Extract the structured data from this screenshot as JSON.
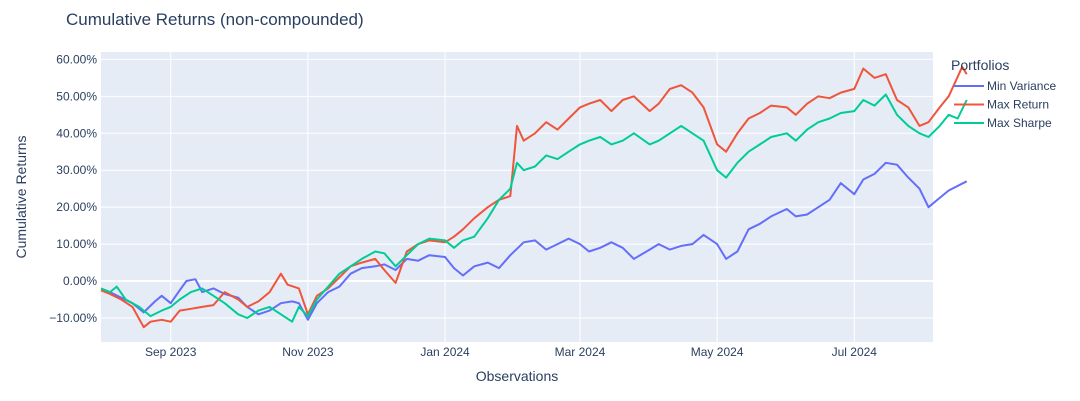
{
  "chart_data": {
    "type": "line",
    "title": "Cumulative Returns (non-compounded)",
    "xlabel": "Observations",
    "ylabel": "Cumulative Returns",
    "x_start": "2023-08-01",
    "x_end": "2024-08-05",
    "ylim": [
      -16.5,
      62
    ],
    "yticks": [
      -10,
      0,
      10,
      20,
      30,
      40,
      50,
      60
    ],
    "ytick_labels": [
      "−10.00%",
      "0.00%",
      "10.00%",
      "20.00%",
      "30.00%",
      "40.00%",
      "50.00%",
      "60.00%"
    ],
    "xticks": [
      {
        "date": "2023-09-01",
        "label": "Sep 2023"
      },
      {
        "date": "2023-11-01",
        "label": "Nov 2023"
      },
      {
        "date": "2024-01-01",
        "label": "Jan 2024"
      },
      {
        "date": "2024-03-01",
        "label": "Mar 2024"
      },
      {
        "date": "2024-05-01",
        "label": "May 2024"
      },
      {
        "date": "2024-07-01",
        "label": "Jul 2024"
      }
    ],
    "legend_title": "Portfolios",
    "legend_position": "right",
    "series": [
      {
        "name": "Min Variance",
        "color": "#636efa",
        "points": [
          [
            "2023-08-01",
            -2.5
          ],
          [
            "2023-08-05",
            -3
          ],
          [
            "2023-08-10",
            -4.5
          ],
          [
            "2023-08-15",
            -6
          ],
          [
            "2023-08-20",
            -8.5
          ],
          [
            "2023-08-25",
            -5.5
          ],
          [
            "2023-08-28",
            -4
          ],
          [
            "2023-09-01",
            -6
          ],
          [
            "2023-09-05",
            -2.5
          ],
          [
            "2023-09-08",
            0
          ],
          [
            "2023-09-12",
            0.5
          ],
          [
            "2023-09-15",
            -3
          ],
          [
            "2023-09-20",
            -2
          ],
          [
            "2023-09-25",
            -3.5
          ],
          [
            "2023-10-01",
            -4.5
          ],
          [
            "2023-10-05",
            -7
          ],
          [
            "2023-10-10",
            -9
          ],
          [
            "2023-10-15",
            -8
          ],
          [
            "2023-10-20",
            -6
          ],
          [
            "2023-10-25",
            -5.5
          ],
          [
            "2023-10-28",
            -6
          ],
          [
            "2023-11-01",
            -10.5
          ],
          [
            "2023-11-05",
            -6
          ],
          [
            "2023-11-10",
            -3
          ],
          [
            "2023-11-15",
            -1.5
          ],
          [
            "2023-11-20",
            2
          ],
          [
            "2023-11-25",
            3.5
          ],
          [
            "2023-12-01",
            4
          ],
          [
            "2023-12-05",
            4.5
          ],
          [
            "2023-12-10",
            3
          ],
          [
            "2023-12-15",
            6
          ],
          [
            "2023-12-20",
            5.5
          ],
          [
            "2023-12-25",
            7
          ],
          [
            "2024-01-01",
            6.5
          ],
          [
            "2024-01-05",
            3.5
          ],
          [
            "2024-01-09",
            1.5
          ],
          [
            "2024-01-14",
            4
          ],
          [
            "2024-01-20",
            5
          ],
          [
            "2024-01-25",
            3.5
          ],
          [
            "2024-01-30",
            7
          ],
          [
            "2024-02-05",
            10.5
          ],
          [
            "2024-02-10",
            11
          ],
          [
            "2024-02-15",
            8.5
          ],
          [
            "2024-02-20",
            10
          ],
          [
            "2024-02-25",
            11.5
          ],
          [
            "2024-03-01",
            10
          ],
          [
            "2024-03-05",
            8
          ],
          [
            "2024-03-10",
            9
          ],
          [
            "2024-03-15",
            10.5
          ],
          [
            "2024-03-20",
            9
          ],
          [
            "2024-03-25",
            6
          ],
          [
            "2024-04-01",
            8.5
          ],
          [
            "2024-04-05",
            10
          ],
          [
            "2024-04-10",
            8.5
          ],
          [
            "2024-04-15",
            9.5
          ],
          [
            "2024-04-20",
            10
          ],
          [
            "2024-04-25",
            12.5
          ],
          [
            "2024-05-01",
            10
          ],
          [
            "2024-05-05",
            6
          ],
          [
            "2024-05-10",
            8
          ],
          [
            "2024-05-15",
            14
          ],
          [
            "2024-05-20",
            15.5
          ],
          [
            "2024-05-25",
            17.5
          ],
          [
            "2024-06-01",
            19.5
          ],
          [
            "2024-06-05",
            17.5
          ],
          [
            "2024-06-10",
            18
          ],
          [
            "2024-06-15",
            20
          ],
          [
            "2024-06-20",
            22
          ],
          [
            "2024-06-25",
            26.5
          ],
          [
            "2024-07-01",
            23.5
          ],
          [
            "2024-07-05",
            27.5
          ],
          [
            "2024-07-10",
            29
          ],
          [
            "2024-07-15",
            32
          ],
          [
            "2024-07-20",
            31.5
          ],
          [
            "2024-07-25",
            28
          ],
          [
            "2024-07-30",
            25
          ],
          [
            "2024-08-03",
            20
          ],
          [
            "2024-08-08",
            22.5
          ],
          [
            "2024-08-12",
            24.5
          ],
          [
            "2024-08-20",
            27
          ]
        ]
      },
      {
        "name": "Max Return",
        "color": "#ef553b",
        "points": [
          [
            "2023-08-01",
            -2.5
          ],
          [
            "2023-08-05",
            -3.5
          ],
          [
            "2023-08-10",
            -5
          ],
          [
            "2023-08-15",
            -7
          ],
          [
            "2023-08-20",
            -12.5
          ],
          [
            "2023-08-23",
            -11
          ],
          [
            "2023-08-28",
            -10.5
          ],
          [
            "2023-09-01",
            -11
          ],
          [
            "2023-09-05",
            -8
          ],
          [
            "2023-09-10",
            -7.5
          ],
          [
            "2023-09-15",
            -7
          ],
          [
            "2023-09-20",
            -6.5
          ],
          [
            "2023-09-25",
            -3
          ],
          [
            "2023-10-01",
            -5
          ],
          [
            "2023-10-05",
            -7
          ],
          [
            "2023-10-10",
            -5.5
          ],
          [
            "2023-10-15",
            -3
          ],
          [
            "2023-10-20",
            2
          ],
          [
            "2023-10-23",
            -1
          ],
          [
            "2023-10-28",
            -2
          ],
          [
            "2023-11-01",
            -9
          ],
          [
            "2023-11-05",
            -4
          ],
          [
            "2023-11-10",
            -2
          ],
          [
            "2023-11-15",
            1
          ],
          [
            "2023-11-20",
            4
          ],
          [
            "2023-11-25",
            5
          ],
          [
            "2023-12-01",
            6
          ],
          [
            "2023-12-05",
            3
          ],
          [
            "2023-12-10",
            -0.5
          ],
          [
            "2023-12-15",
            8
          ],
          [
            "2023-12-20",
            10
          ],
          [
            "2023-12-25",
            11
          ],
          [
            "2024-01-01",
            10.5
          ],
          [
            "2024-01-05",
            12
          ],
          [
            "2024-01-09",
            14
          ],
          [
            "2024-01-14",
            17
          ],
          [
            "2024-01-20",
            20
          ],
          [
            "2024-01-25",
            22
          ],
          [
            "2024-01-30",
            23
          ],
          [
            "2024-02-02",
            42
          ],
          [
            "2024-02-05",
            38
          ],
          [
            "2024-02-10",
            40
          ],
          [
            "2024-02-15",
            43
          ],
          [
            "2024-02-20",
            41
          ],
          [
            "2024-02-25",
            44
          ],
          [
            "2024-03-01",
            47
          ],
          [
            "2024-03-05",
            48
          ],
          [
            "2024-03-10",
            49
          ],
          [
            "2024-03-15",
            46
          ],
          [
            "2024-03-20",
            49
          ],
          [
            "2024-03-25",
            50
          ],
          [
            "2024-04-01",
            46
          ],
          [
            "2024-04-05",
            48
          ],
          [
            "2024-04-10",
            52
          ],
          [
            "2024-04-15",
            53
          ],
          [
            "2024-04-20",
            51
          ],
          [
            "2024-04-25",
            47
          ],
          [
            "2024-05-01",
            37
          ],
          [
            "2024-05-05",
            35
          ],
          [
            "2024-05-10",
            40
          ],
          [
            "2024-05-15",
            44
          ],
          [
            "2024-05-20",
            45.5
          ],
          [
            "2024-05-25",
            47.5
          ],
          [
            "2024-06-01",
            47
          ],
          [
            "2024-06-05",
            45
          ],
          [
            "2024-06-10",
            48
          ],
          [
            "2024-06-15",
            50
          ],
          [
            "2024-06-20",
            49.5
          ],
          [
            "2024-06-25",
            51
          ],
          [
            "2024-07-01",
            52
          ],
          [
            "2024-07-05",
            57.5
          ],
          [
            "2024-07-10",
            55
          ],
          [
            "2024-07-15",
            56
          ],
          [
            "2024-07-20",
            49
          ],
          [
            "2024-07-25",
            47
          ],
          [
            "2024-07-30",
            42
          ],
          [
            "2024-08-03",
            43
          ],
          [
            "2024-08-08",
            47
          ],
          [
            "2024-08-12",
            50
          ],
          [
            "2024-08-15",
            54
          ],
          [
            "2024-08-18",
            58
          ],
          [
            "2024-08-20",
            56
          ]
        ]
      },
      {
        "name": "Max Sharpe",
        "color": "#00cc96",
        "points": [
          [
            "2023-08-01",
            -2
          ],
          [
            "2023-08-05",
            -3
          ],
          [
            "2023-08-08",
            -1.5
          ],
          [
            "2023-08-12",
            -5
          ],
          [
            "2023-08-18",
            -7
          ],
          [
            "2023-08-23",
            -9.5
          ],
          [
            "2023-08-28",
            -8
          ],
          [
            "2023-09-01",
            -7
          ],
          [
            "2023-09-05",
            -5
          ],
          [
            "2023-09-10",
            -3
          ],
          [
            "2023-09-15",
            -2
          ],
          [
            "2023-09-20",
            -4
          ],
          [
            "2023-09-25",
            -6
          ],
          [
            "2023-10-01",
            -9
          ],
          [
            "2023-10-05",
            -10
          ],
          [
            "2023-10-10",
            -8
          ],
          [
            "2023-10-15",
            -7
          ],
          [
            "2023-10-20",
            -9
          ],
          [
            "2023-10-25",
            -11
          ],
          [
            "2023-10-28",
            -7
          ],
          [
            "2023-11-01",
            -9.5
          ],
          [
            "2023-11-05",
            -5
          ],
          [
            "2023-11-10",
            -1.5
          ],
          [
            "2023-11-15",
            2
          ],
          [
            "2023-11-20",
            4
          ],
          [
            "2023-11-25",
            6
          ],
          [
            "2023-12-01",
            8
          ],
          [
            "2023-12-05",
            7.5
          ],
          [
            "2023-12-10",
            4
          ],
          [
            "2023-12-15",
            7
          ],
          [
            "2023-12-20",
            10
          ],
          [
            "2023-12-25",
            11.5
          ],
          [
            "2024-01-01",
            11
          ],
          [
            "2024-01-05",
            9
          ],
          [
            "2024-01-09",
            11
          ],
          [
            "2024-01-14",
            12
          ],
          [
            "2024-01-20",
            17
          ],
          [
            "2024-01-25",
            22
          ],
          [
            "2024-01-30",
            25
          ],
          [
            "2024-02-02",
            32
          ],
          [
            "2024-02-05",
            30
          ],
          [
            "2024-02-10",
            31
          ],
          [
            "2024-02-15",
            34
          ],
          [
            "2024-02-20",
            33
          ],
          [
            "2024-02-25",
            35
          ],
          [
            "2024-03-01",
            37
          ],
          [
            "2024-03-05",
            38
          ],
          [
            "2024-03-10",
            39
          ],
          [
            "2024-03-15",
            37
          ],
          [
            "2024-03-20",
            38
          ],
          [
            "2024-03-25",
            40
          ],
          [
            "2024-04-01",
            37
          ],
          [
            "2024-04-05",
            38
          ],
          [
            "2024-04-10",
            40
          ],
          [
            "2024-04-15",
            42
          ],
          [
            "2024-04-20",
            40
          ],
          [
            "2024-04-25",
            38
          ],
          [
            "2024-05-01",
            30
          ],
          [
            "2024-05-05",
            28
          ],
          [
            "2024-05-10",
            32
          ],
          [
            "2024-05-15",
            35
          ],
          [
            "2024-05-20",
            37
          ],
          [
            "2024-05-25",
            39
          ],
          [
            "2024-06-01",
            40
          ],
          [
            "2024-06-05",
            38
          ],
          [
            "2024-06-10",
            41
          ],
          [
            "2024-06-15",
            43
          ],
          [
            "2024-06-20",
            44
          ],
          [
            "2024-06-25",
            45.5
          ],
          [
            "2024-07-01",
            46
          ],
          [
            "2024-07-05",
            49
          ],
          [
            "2024-07-10",
            47.5
          ],
          [
            "2024-07-15",
            50.5
          ],
          [
            "2024-07-20",
            45
          ],
          [
            "2024-07-25",
            42
          ],
          [
            "2024-07-30",
            40
          ],
          [
            "2024-08-03",
            39
          ],
          [
            "2024-08-08",
            42
          ],
          [
            "2024-08-12",
            45
          ],
          [
            "2024-08-16",
            44
          ],
          [
            "2024-08-20",
            49
          ]
        ]
      }
    ]
  }
}
